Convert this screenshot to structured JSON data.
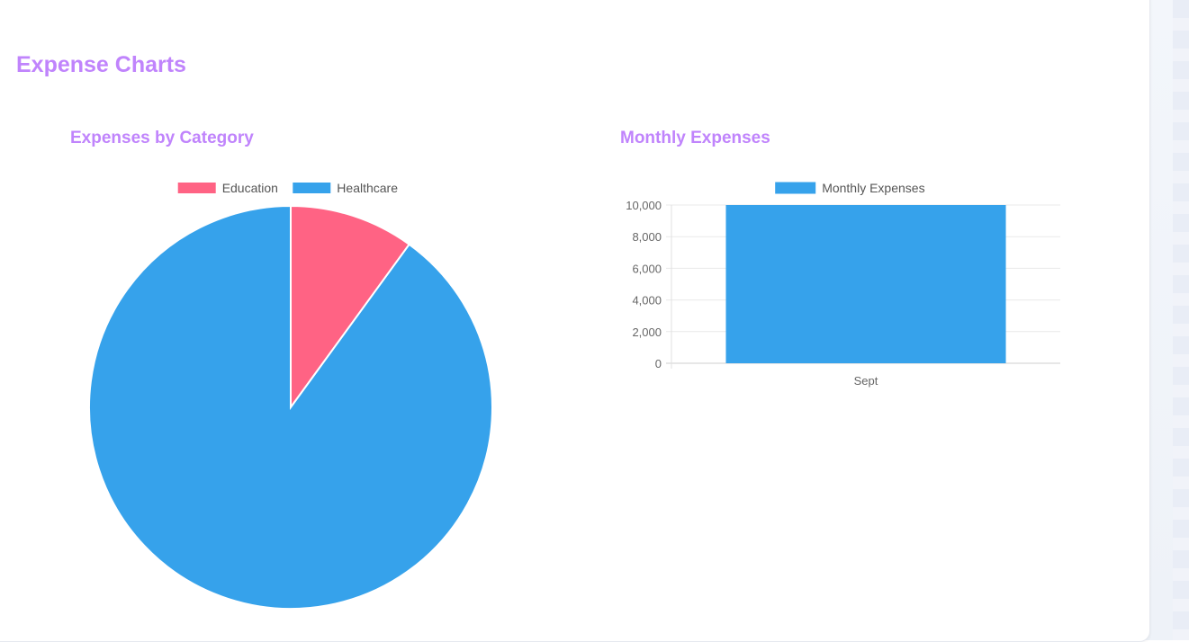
{
  "page": {
    "title": "Expense Charts"
  },
  "chart_data": [
    {
      "type": "pie",
      "title": "Expenses by Category",
      "legend_position": "top",
      "labels": [
        "Education",
        "Healthcare"
      ],
      "values": [
        10,
        90
      ],
      "colors": [
        "#ff6384",
        "#36a2eb"
      ]
    },
    {
      "type": "bar",
      "title": "Monthly Expenses",
      "legend_position": "top",
      "categories": [
        "Sept"
      ],
      "series": [
        {
          "name": "Monthly Expenses",
          "values": [
            10000
          ],
          "color": "#36a2eb"
        }
      ],
      "ylim": [
        0,
        10000
      ],
      "yticks": [
        0,
        2000,
        4000,
        6000,
        8000,
        10000
      ],
      "ytick_labels": [
        "0",
        "2,000",
        "4,000",
        "6,000",
        "8,000",
        "10,000"
      ],
      "grid": true
    }
  ]
}
